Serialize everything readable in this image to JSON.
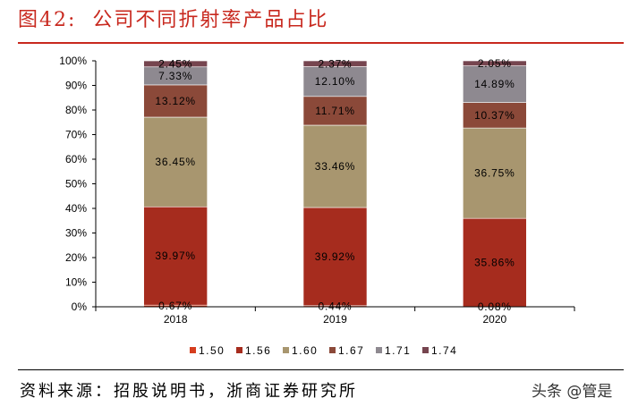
{
  "header": {
    "figure_label": "图42:",
    "title": "公司不同折射率产品占比"
  },
  "footer": {
    "source": "资料来源：招股说明书，浙商证券研究所",
    "watermark": "头条 @管是"
  },
  "colors": {
    "title": "#C8281E",
    "title_rule": "#C8281E",
    "source_rule": "#000000",
    "axis": "#000000",
    "label_text": "#000000"
  },
  "chart_data": {
    "type": "bar",
    "stacked": true,
    "categories": [
      "2018",
      "2019",
      "2020"
    ],
    "series": [
      {
        "name": "1.50",
        "color": "#D63E1F",
        "values": [
          0.67,
          0.44,
          0.08
        ]
      },
      {
        "name": "1.56",
        "color": "#A62C1E",
        "values": [
          39.97,
          39.92,
          35.86
        ]
      },
      {
        "name": "1.60",
        "color": "#A8966F",
        "values": [
          36.45,
          33.46,
          36.75
        ]
      },
      {
        "name": "1.67",
        "color": "#8B4939",
        "values": [
          13.12,
          11.71,
          10.37
        ]
      },
      {
        "name": "1.71",
        "color": "#8E8990",
        "values": [
          7.33,
          12.1,
          14.89
        ]
      },
      {
        "name": "1.74",
        "color": "#76454F",
        "values": [
          2.45,
          2.37,
          2.05
        ]
      }
    ],
    "value_unit": "%",
    "ylim": [
      0,
      100
    ],
    "yticks": [
      0,
      10,
      20,
      30,
      40,
      50,
      60,
      70,
      80,
      90,
      100
    ],
    "ytick_labels": [
      "0%",
      "10%",
      "20%",
      "30%",
      "40%",
      "50%",
      "60%",
      "70%",
      "80%",
      "90%",
      "100%"
    ],
    "data_labels": "inside",
    "legend": "bottom",
    "grid": false
  }
}
